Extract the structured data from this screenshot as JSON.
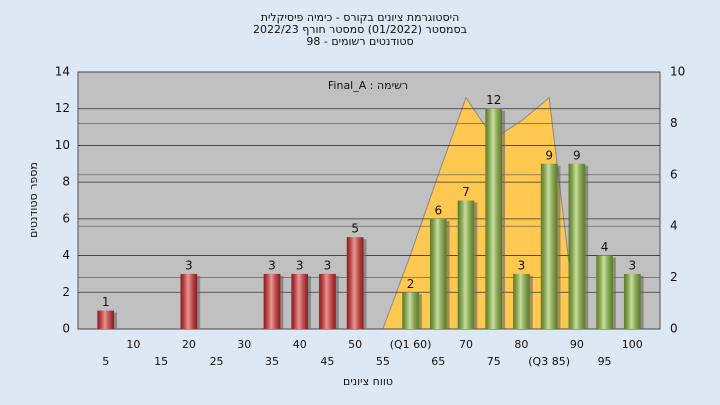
{
  "chart_data": {
    "type": "bar",
    "title": [
      "היסטוגרמת ציונים בקורס - כימיה פיסיקלית",
      "בסמסטר  (01/2022)  סמסטר חורף 2022/23",
      "סטודנטים רשומים - 98"
    ],
    "annotation": "רשימה : Final_A",
    "xlabel": "טווח ציונים",
    "ylabel": "מספר סטודנטים",
    "categories": [
      5,
      10,
      15,
      20,
      25,
      30,
      35,
      40,
      45,
      50,
      55,
      "(Q1 60)",
      65,
      70,
      75,
      80,
      "(Q3 85)",
      90,
      95,
      100
    ],
    "values": [
      1,
      0,
      0,
      3,
      0,
      0,
      3,
      3,
      3,
      5,
      0,
      2,
      6,
      7,
      12,
      3,
      9,
      9,
      4,
      3
    ],
    "colors": [
      "#e02828",
      "#e02828",
      "#e02828",
      "#e02828",
      "#e02828",
      "#e02828",
      "#e02828",
      "#e02828",
      "#e02828",
      "#e02828",
      "#e02828",
      "#8fbf3a",
      "#8fbf3a",
      "#8fbf3a",
      "#8fbf3a",
      "#8fbf3a",
      "#8fbf3a",
      "#8fbf3a",
      "#8fbf3a",
      "#8fbf3a"
    ],
    "area": {
      "color": "#ffc850",
      "axis": "y2",
      "values": [
        null,
        null,
        null,
        null,
        null,
        null,
        null,
        null,
        null,
        null,
        0,
        2.9,
        6,
        9,
        7.4,
        8.1,
        9,
        0,
        null,
        null
      ]
    },
    "ylim": [
      0,
      14
    ],
    "yticks": [
      0,
      2,
      4,
      6,
      8,
      10,
      12,
      14
    ],
    "y2lim": [
      0,
      10
    ],
    "y2ticks": [
      0,
      2,
      4,
      6,
      8,
      10
    ],
    "grid": true
  }
}
